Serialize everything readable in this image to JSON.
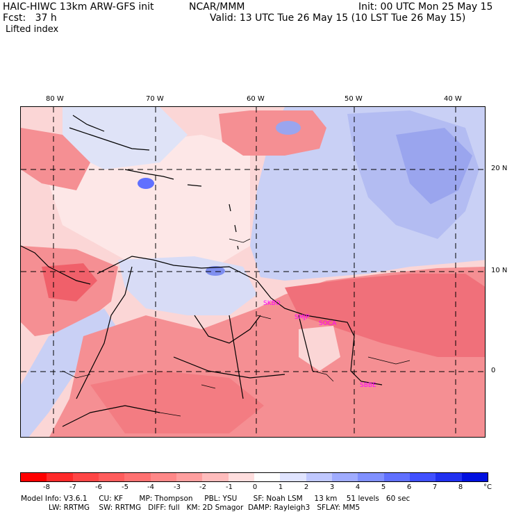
{
  "header": {
    "model_title": "HAIC-HIWC 13km ARW-GFS init",
    "org": "NCAR/MMM",
    "init": "Init: 00 UTC Mon 25 May 15",
    "fcst": "Fcst:   37 h",
    "valid": "Valid: 13 UTC Tue 26 May 15 (10 LST Tue 26 May 15)",
    "field": "Lifted index"
  },
  "map": {
    "lon_labels": [
      "80 W",
      "70 W",
      "60 W",
      "50 W",
      "40 W"
    ],
    "lat_labels": [
      "20 N",
      "10 N",
      "0"
    ],
    "stations": [
      "SKBO",
      "SMJP",
      "SOCA",
      "SBBE"
    ],
    "colors": {
      "negative_strong": "#f0606a",
      "negative_mid": "#f58f93",
      "negative_light": "#fbc4c4",
      "neutral": "#fdf3f3",
      "positive_light": "#c9d0f5",
      "positive_mid": "#7f8ff0",
      "positive_strong": "#3040e0",
      "coast": "#000000",
      "grid": "#000000",
      "station": "#ff00ff"
    }
  },
  "colorbar": {
    "labels": [
      "-8",
      "-7",
      "-6",
      "-5",
      "-4",
      "-3",
      "-2",
      "-1",
      "0",
      "1",
      "2",
      "3",
      "4",
      "5",
      "6",
      "7",
      "8"
    ],
    "unit": "°C",
    "colors": [
      "#ff0000",
      "#ff2a2a",
      "#ff4646",
      "#ff5c5c",
      "#ff7171",
      "#ff8888",
      "#ff9f9f",
      "#ffbcbc",
      "#ffdede",
      "#fefefe",
      "#e0e4ff",
      "#c0c8ff",
      "#a0acff",
      "#8090ff",
      "#6070ff",
      "#4050ff",
      "#2030f0",
      "#0010e0"
    ]
  },
  "footer": {
    "line1": "Model Info: V3.6.1     CU: KF       MP: Thompson     PBL: YSU       SF: Noah LSM     13 km    51 levels   60 sec",
    "line2": "            LW: RRTMG    SW: RRTMG   DIFF: full   KM: 2D Smagor  DAMP: Rayleigh3   SFLAY: MM5"
  }
}
